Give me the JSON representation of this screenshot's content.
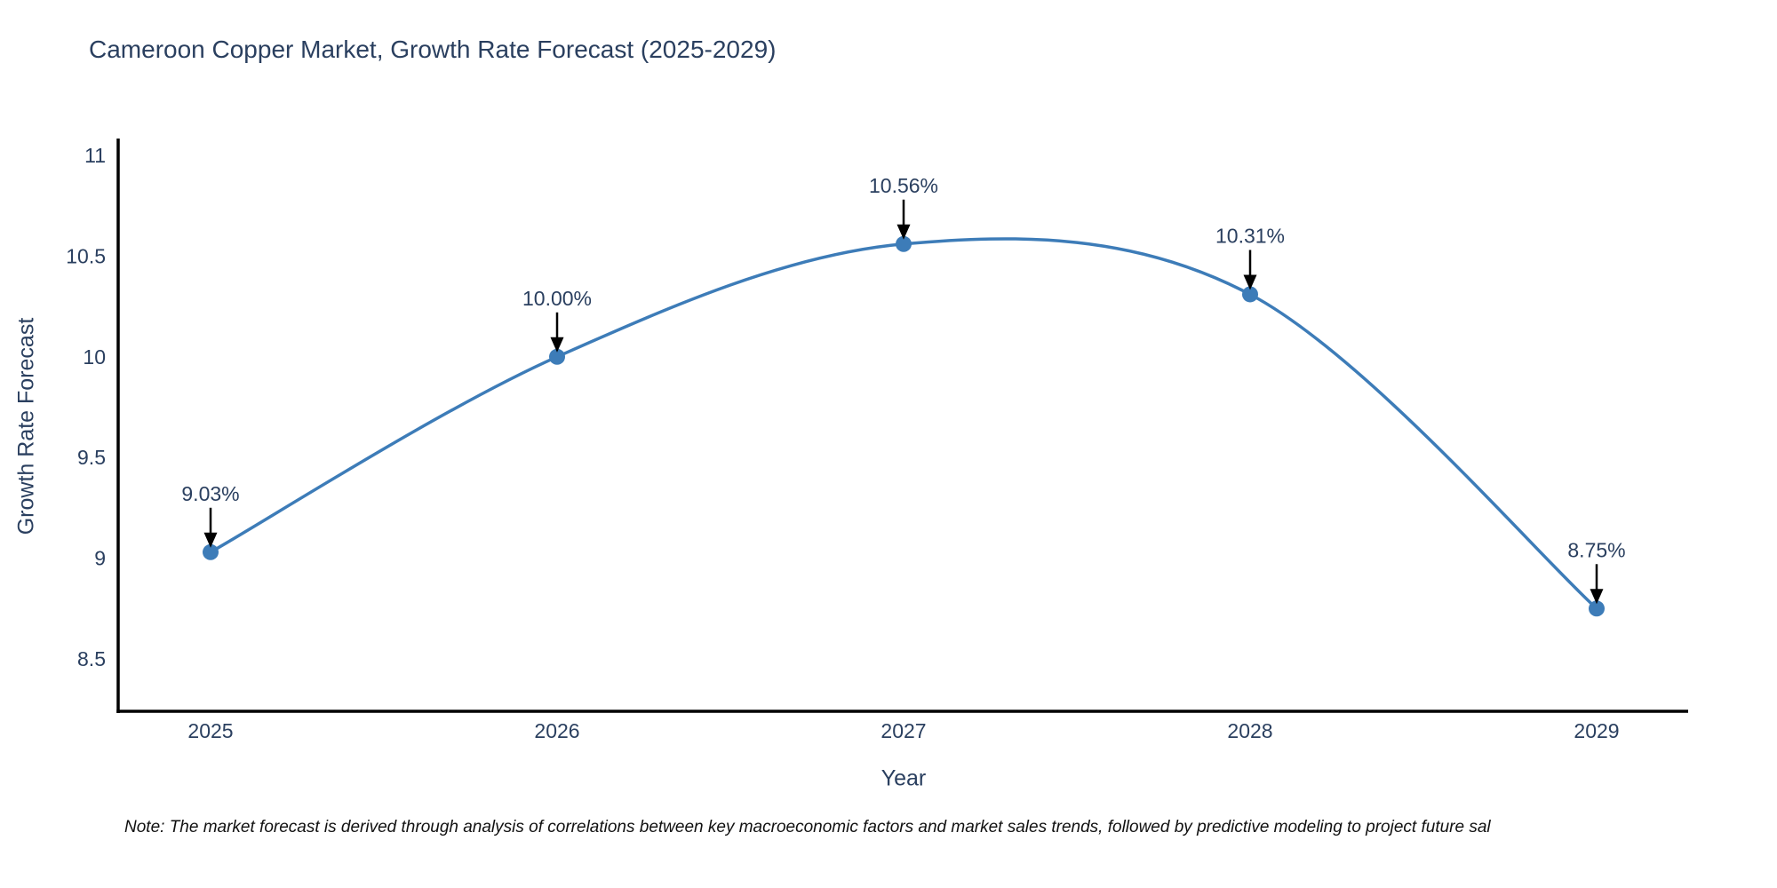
{
  "title": "Cameroon Copper Market, Growth Rate Forecast (2025-2029)",
  "note": "Note: The market forecast is derived through analysis of correlations between key macroeconomic factors and market sales trends, followed by predictive modeling to project future sal",
  "chart_data": {
    "type": "line",
    "title": "Cameroon Copper Market, Growth Rate Forecast (2025-2029)",
    "xlabel": "Year",
    "ylabel": "Growth Rate Forecast",
    "x": [
      2025,
      2026,
      2027,
      2028,
      2029
    ],
    "values": [
      9.03,
      10.0,
      10.56,
      10.31,
      8.75
    ],
    "point_labels": [
      "9.03%",
      "10.00%",
      "10.56%",
      "10.31%",
      "8.75%"
    ],
    "x_ticks": [
      "2025",
      "2026",
      "2027",
      "2028",
      "2029"
    ],
    "y_ticks": [
      "11",
      "10.5",
      "10",
      "9.5",
      "9",
      "8.5"
    ],
    "y_tick_values": [
      11,
      10.5,
      10,
      9.5,
      9,
      8.5
    ],
    "ylim": [
      8.37,
      11.08
    ],
    "line_shape": "spline",
    "grid": false,
    "legend": false,
    "markers": true,
    "annotations_arrows": true,
    "colors": {
      "line": "#3d7cb8",
      "marker": "#3d7cb8",
      "axis": "#000000",
      "tick_text": "#2a3f5f",
      "annotation_text": "#2a3f5f",
      "arrow": "#000000",
      "background": "#ffffff"
    }
  }
}
